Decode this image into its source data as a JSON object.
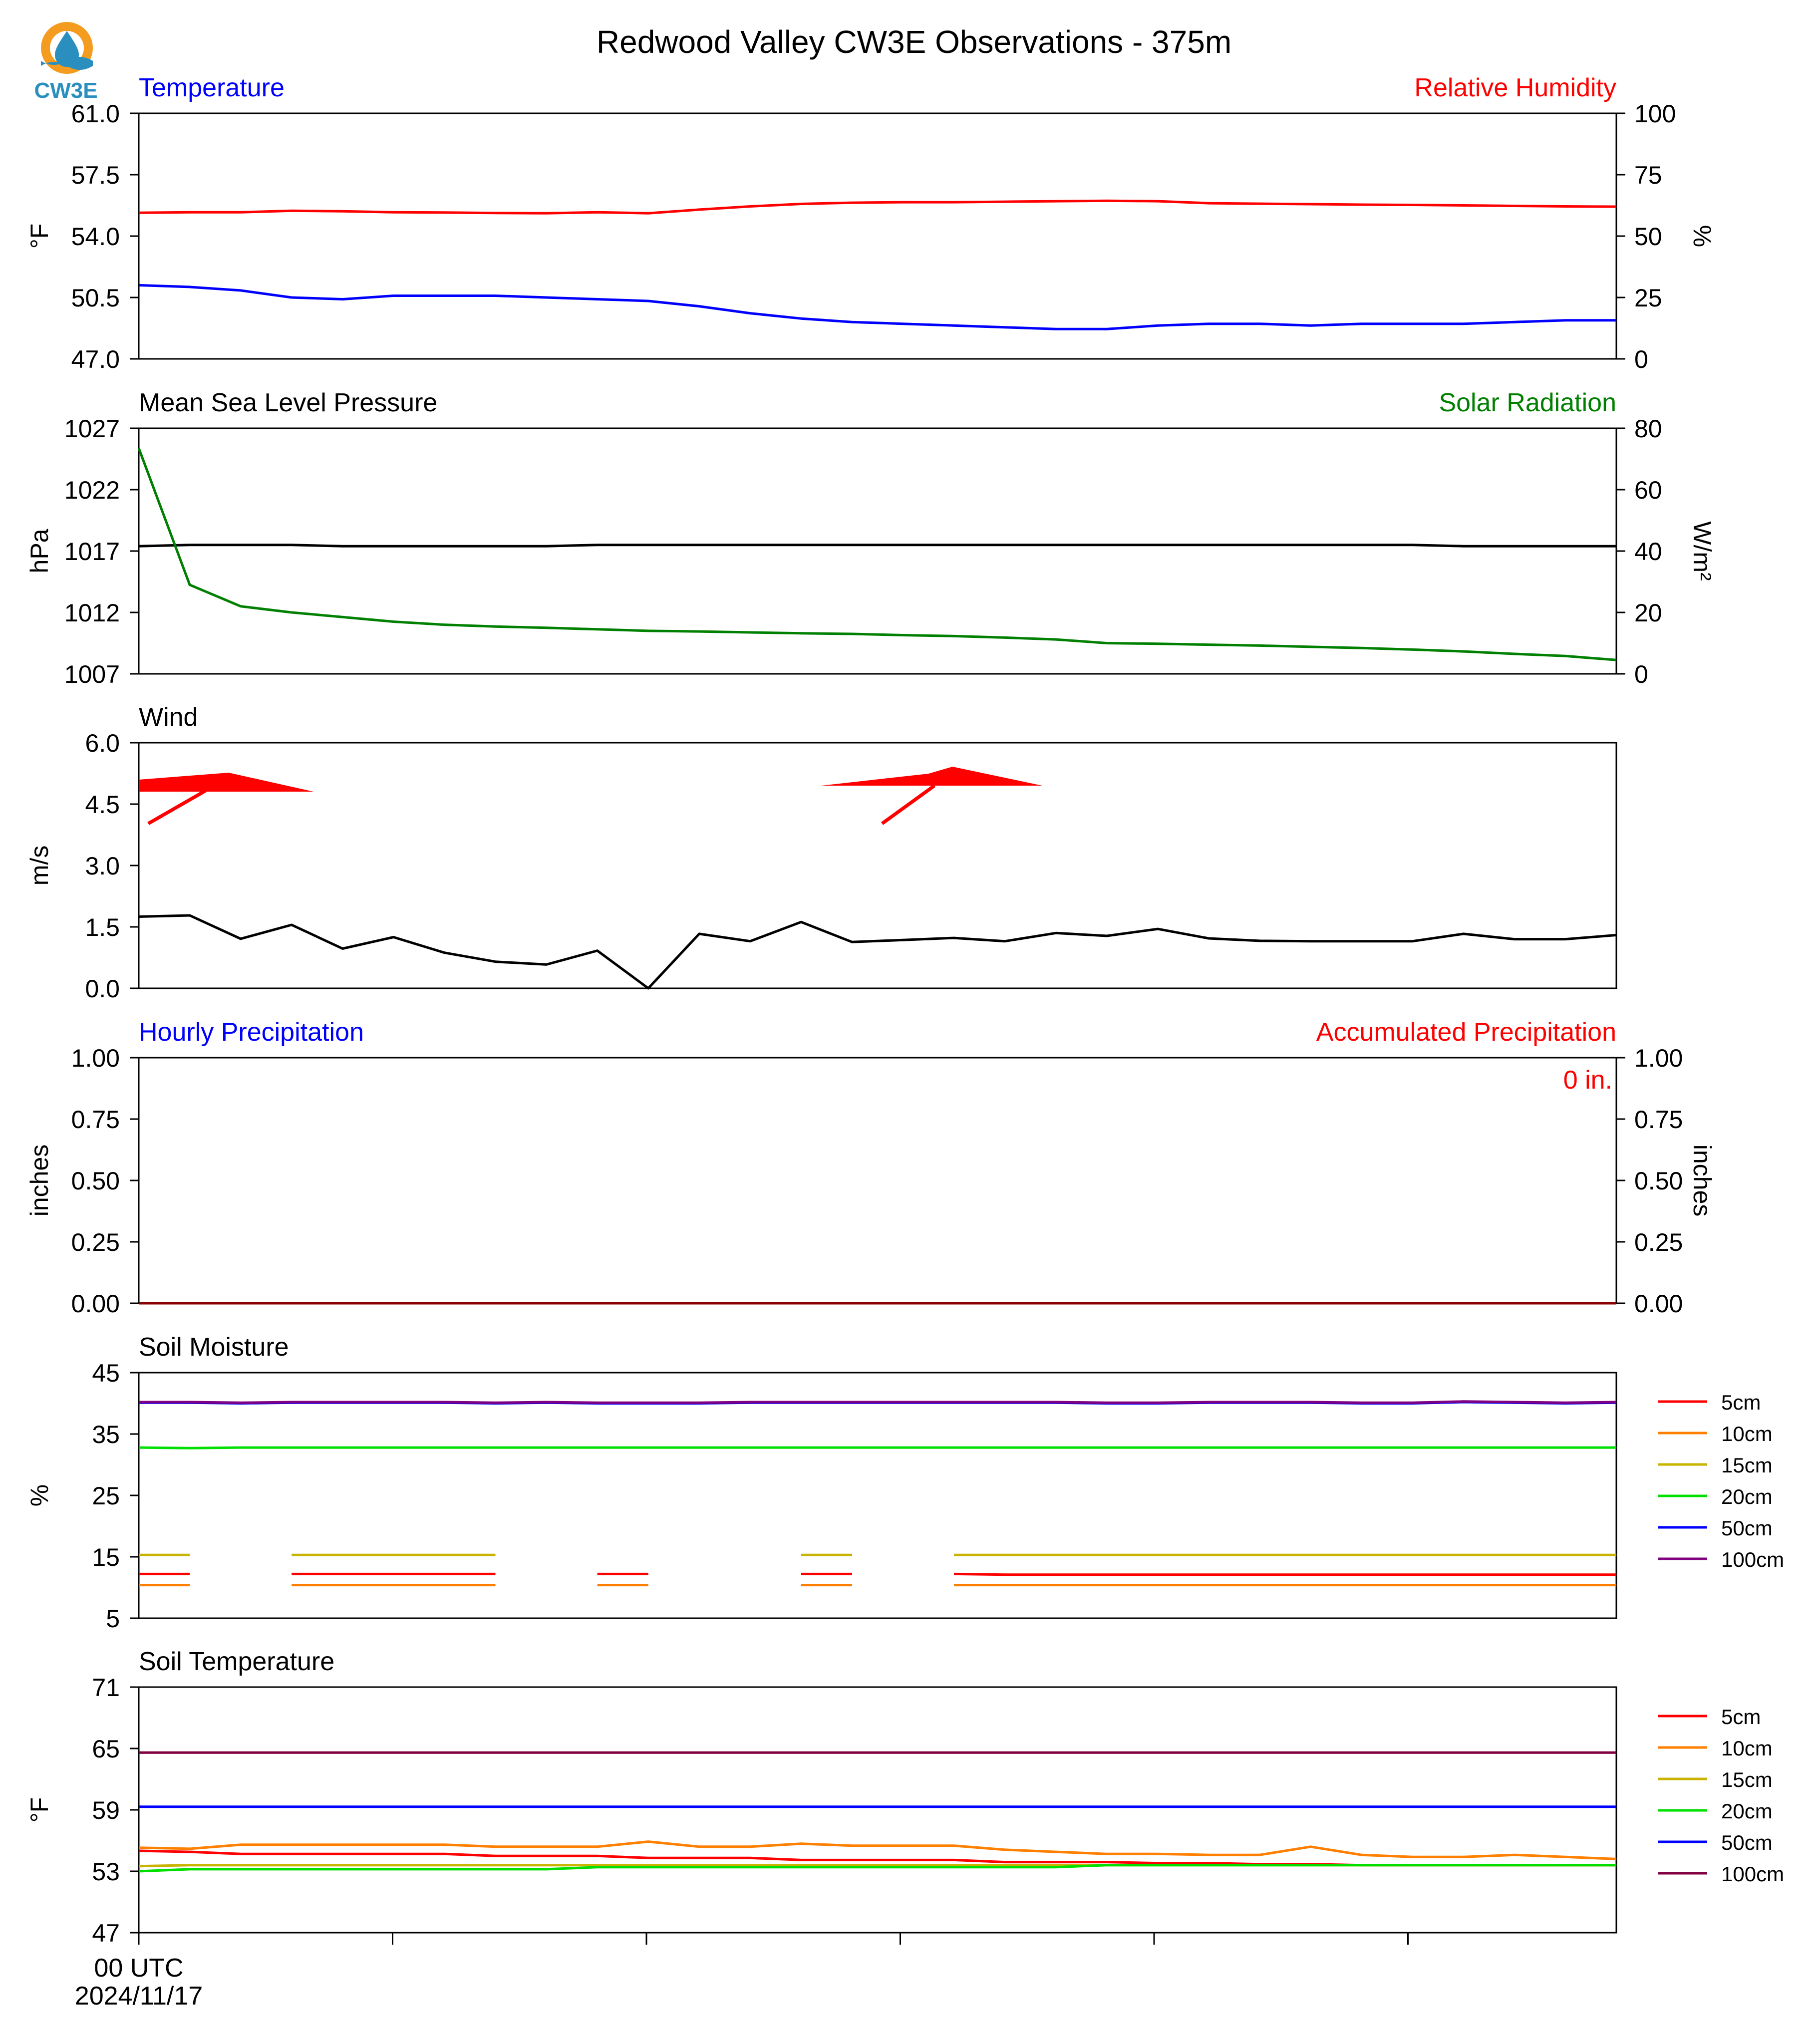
{
  "title": "Redwood Valley CW3E Observations - 375m",
  "logo": {
    "text": "CW3E",
    "colors": {
      "ring": "#f39c1f",
      "drop": "#2a8fbf",
      "text": "#2a8fbf"
    }
  },
  "x_axis": {
    "first_label_line1": "00 UTC",
    "first_label_line2": "2024/11/17",
    "n_points": 30,
    "n_ticks": 6
  },
  "chart_data": [
    {
      "type": "line",
      "title_left": "Temperature",
      "title_left_color": "#0000ff",
      "title_right": "Relative Humidity",
      "title_right_color": "#ff0000",
      "ylabel": "°F",
      "ylabel_right": "%",
      "ylim": [
        47.0,
        61.0
      ],
      "yticks": [
        "47.0",
        "50.5",
        "54.0",
        "57.5",
        "61.0"
      ],
      "ylim_right": [
        0,
        100
      ],
      "yticks_right": [
        "0",
        "25",
        "50",
        "75",
        "100"
      ],
      "series": [
        {
          "axis": "left",
          "color": "#0000ff",
          "values": [
            51.2,
            51.1,
            50.9,
            50.5,
            50.4,
            50.6,
            50.6,
            50.6,
            50.5,
            50.4,
            50.3,
            50.0,
            49.6,
            49.3,
            49.1,
            49.0,
            48.9,
            48.8,
            48.7,
            48.7,
            48.9,
            49.0,
            49.0,
            48.9,
            49.0,
            49.0,
            49.0,
            49.1,
            49.2,
            49.2
          ]
        },
        {
          "axis": "right",
          "color": "#ff0000",
          "values": [
            59.5,
            59.7,
            59.7,
            60.3,
            60.1,
            59.7,
            59.6,
            59.4,
            59.3,
            59.7,
            59.3,
            60.8,
            62.1,
            63.1,
            63.6,
            63.8,
            63.8,
            64.0,
            64.2,
            64.4,
            64.2,
            63.4,
            63.2,
            63.0,
            62.8,
            62.7,
            62.5,
            62.3,
            62.1,
            62.0
          ]
        }
      ]
    },
    {
      "type": "line",
      "title_left": "Mean Sea Level Pressure",
      "title_left_color": "#000000",
      "title_right": "Solar Radiation",
      "title_right_color": "#008000",
      "ylabel": "hPa",
      "ylabel_right": "W/m²",
      "ylim": [
        1007,
        1027
      ],
      "yticks": [
        "1007",
        "1012",
        "1017",
        "1022",
        "1027"
      ],
      "ylim_right": [
        0,
        80
      ],
      "yticks_right": [
        "0",
        "20",
        "40",
        "60",
        "80"
      ],
      "series": [
        {
          "axis": "left",
          "color": "#000000",
          "values": [
            1017.4,
            1017.5,
            1017.5,
            1017.5,
            1017.4,
            1017.4,
            1017.4,
            1017.4,
            1017.4,
            1017.5,
            1017.5,
            1017.5,
            1017.5,
            1017.5,
            1017.5,
            1017.5,
            1017.5,
            1017.5,
            1017.5,
            1017.5,
            1017.5,
            1017.5,
            1017.5,
            1017.5,
            1017.5,
            1017.5,
            1017.4,
            1017.4,
            1017.4,
            1017.4
          ]
        },
        {
          "axis": "right",
          "color": "#008000",
          "values": [
            73.5,
            29.0,
            22.0,
            20.0,
            18.5,
            17.0,
            16.0,
            15.4,
            15.0,
            14.5,
            14.0,
            13.8,
            13.5,
            13.2,
            13.0,
            12.6,
            12.3,
            11.8,
            11.2,
            10.0,
            9.8,
            9.5,
            9.2,
            8.8,
            8.4,
            7.9,
            7.3,
            6.5,
            5.8,
            4.5
          ]
        }
      ]
    },
    {
      "type": "line",
      "title_left": "Wind",
      "title_left_color": "#000000",
      "ylabel": "m/s",
      "ylim": [
        0.0,
        6.0
      ],
      "yticks": [
        "0.0",
        "1.5",
        "3.0",
        "4.5",
        "6.0"
      ],
      "series": [
        {
          "axis": "left",
          "color": "#000000",
          "values": [
            1.75,
            1.78,
            1.21,
            1.55,
            0.97,
            1.25,
            0.87,
            0.65,
            0.58,
            0.92,
            0.0,
            1.33,
            1.15,
            1.62,
            1.13,
            1.18,
            1.23,
            1.15,
            1.35,
            1.28,
            1.45,
            1.22,
            1.16,
            1.15,
            1.15,
            1.15,
            1.33,
            1.2,
            1.2,
            1.3
          ]
        }
      ],
      "barbs": {
        "color": "#ff0000",
        "positions": [
          1,
          16
        ]
      }
    },
    {
      "type": "line",
      "title_left": "Hourly Precipitation",
      "title_left_color": "#0000ff",
      "title_right": "Accumulated Precipitation",
      "title_right_color": "#ff0000",
      "ylabel": "inches",
      "ylabel_right": "inches",
      "ylim": [
        0.0,
        1.0
      ],
      "yticks": [
        "0.00",
        "0.25",
        "0.50",
        "0.75",
        "1.00"
      ],
      "ylim_right": [
        0.0,
        1.0
      ],
      "yticks_right": [
        "0.00",
        "0.25",
        "0.50",
        "0.75",
        "1.00"
      ],
      "annotation": {
        "text": "0 in.",
        "color": "#ff0000"
      },
      "series": [
        {
          "axis": "left",
          "color": "#0000ff",
          "values": [
            0,
            0,
            0,
            0,
            0,
            0,
            0,
            0,
            0,
            0,
            0,
            0,
            0,
            0,
            0,
            0,
            0,
            0,
            0,
            0,
            0,
            0,
            0,
            0,
            0,
            0,
            0,
            0,
            0,
            0
          ]
        },
        {
          "axis": "right",
          "color": "#8b0000",
          "values": [
            0,
            0,
            0,
            0,
            0,
            0,
            0,
            0,
            0,
            0,
            0,
            0,
            0,
            0,
            0,
            0,
            0,
            0,
            0,
            0,
            0,
            0,
            0,
            0,
            0,
            0,
            0,
            0,
            0,
            0
          ]
        }
      ]
    },
    {
      "type": "line",
      "title_left": "Soil Moisture",
      "title_left_color": "#000000",
      "ylabel": "%",
      "ylim": [
        5,
        45
      ],
      "yticks": [
        "5",
        "15",
        "25",
        "35",
        "45"
      ],
      "legend": {
        "placement": "right",
        "entries": [
          "5cm",
          "10cm",
          "15cm",
          "20cm",
          "50cm",
          "100cm"
        ]
      },
      "series": [
        {
          "name": "5cm",
          "color": "#ff0000",
          "values": [
            12.2,
            12.2,
            null,
            12.2,
            12.2,
            12.2,
            12.2,
            12.2,
            null,
            12.2,
            12.2,
            null,
            null,
            12.2,
            12.2,
            null,
            12.2,
            12.1,
            12.1,
            12.1,
            12.1,
            12.1,
            12.1,
            12.1,
            12.1,
            12.1,
            12.1,
            12.1,
            12.1,
            12.1
          ]
        },
        {
          "name": "10cm",
          "color": "#ff8000",
          "values": [
            10.4,
            10.4,
            null,
            10.4,
            10.4,
            10.4,
            10.4,
            10.4,
            null,
            10.4,
            10.4,
            null,
            null,
            10.4,
            10.4,
            null,
            10.4,
            10.4,
            10.4,
            10.4,
            10.4,
            10.4,
            10.4,
            10.4,
            10.4,
            10.4,
            10.4,
            10.4,
            10.4,
            10.4
          ]
        },
        {
          "name": "15cm",
          "color": "#c8b400",
          "values": [
            15.3,
            15.3,
            null,
            15.3,
            15.3,
            15.3,
            15.3,
            15.3,
            null,
            null,
            null,
            null,
            null,
            15.3,
            15.3,
            null,
            15.3,
            15.3,
            15.3,
            15.3,
            15.3,
            15.3,
            15.3,
            15.3,
            15.3,
            15.3,
            15.3,
            15.3,
            15.3,
            15.3
          ]
        },
        {
          "name": "20cm",
          "color": "#00e000",
          "values": [
            32.8,
            32.7,
            32.8,
            32.8,
            32.8,
            32.8,
            32.8,
            32.8,
            32.8,
            32.8,
            32.8,
            32.8,
            32.8,
            32.8,
            32.8,
            32.8,
            32.8,
            32.8,
            32.8,
            32.8,
            32.8,
            32.8,
            32.8,
            32.8,
            32.8,
            32.8,
            32.8,
            32.8,
            32.8,
            32.8
          ]
        },
        {
          "name": "50cm",
          "color": "#0000ff",
          "values": [
            40.1,
            40.1,
            40.0,
            40.1,
            40.1,
            40.1,
            40.1,
            40.0,
            40.1,
            40.0,
            40.0,
            40.0,
            40.1,
            40.1,
            40.1,
            40.1,
            40.1,
            40.1,
            40.1,
            40.0,
            40.0,
            40.1,
            40.1,
            40.1,
            40.0,
            40.0,
            40.2,
            40.1,
            40.0,
            40.1
          ]
        },
        {
          "name": "100cm",
          "color": "#800080",
          "values": [
            40.2,
            40.2,
            40.1,
            40.2,
            40.2,
            40.2,
            40.2,
            40.1,
            40.2,
            40.1,
            40.1,
            40.1,
            40.2,
            40.2,
            40.2,
            40.2,
            40.2,
            40.2,
            40.2,
            40.1,
            40.1,
            40.2,
            40.2,
            40.2,
            40.1,
            40.1,
            40.3,
            40.2,
            40.1,
            40.2
          ]
        }
      ]
    },
    {
      "type": "line",
      "title_left": "Soil Temperature",
      "title_left_color": "#000000",
      "ylabel": "°F",
      "ylim": [
        47,
        71
      ],
      "yticks": [
        "47",
        "53",
        "59",
        "65",
        "71"
      ],
      "legend": {
        "placement": "right",
        "entries": [
          "5cm",
          "10cm",
          "15cm",
          "20cm",
          "50cm",
          "100cm"
        ]
      },
      "series": [
        {
          "name": "5cm",
          "color": "#ff0000",
          "values": [
            55.0,
            54.9,
            54.7,
            54.7,
            54.7,
            54.7,
            54.7,
            54.5,
            54.5,
            54.5,
            54.3,
            54.3,
            54.3,
            54.1,
            54.1,
            54.1,
            54.1,
            53.9,
            53.9,
            53.9,
            53.8,
            53.8,
            53.7,
            53.7,
            53.6,
            53.6,
            53.6,
            53.6,
            53.6,
            53.6
          ]
        },
        {
          "name": "10cm",
          "color": "#ff8000",
          "values": [
            55.3,
            55.2,
            55.6,
            55.6,
            55.6,
            55.6,
            55.6,
            55.4,
            55.4,
            55.4,
            55.9,
            55.4,
            55.4,
            55.7,
            55.5,
            55.5,
            55.5,
            55.1,
            54.9,
            54.7,
            54.7,
            54.6,
            54.6,
            55.4,
            54.6,
            54.4,
            54.4,
            54.6,
            54.4,
            54.2
          ]
        },
        {
          "name": "15cm",
          "color": "#c8b400",
          "values": [
            53.5,
            53.6,
            53.6,
            53.6,
            53.6,
            53.6,
            53.6,
            53.6,
            53.6,
            53.6,
            53.6,
            53.6,
            53.6,
            53.6,
            53.6,
            53.6,
            53.6,
            53.6,
            53.6,
            53.6,
            53.6,
            53.6,
            53.6,
            53.6,
            53.6,
            53.6,
            53.6,
            53.6,
            53.6,
            53.6
          ]
        },
        {
          "name": "20cm",
          "color": "#00e000",
          "values": [
            53.0,
            53.2,
            53.2,
            53.2,
            53.2,
            53.2,
            53.2,
            53.2,
            53.2,
            53.4,
            53.4,
            53.4,
            53.4,
            53.4,
            53.4,
            53.4,
            53.4,
            53.4,
            53.4,
            53.6,
            53.6,
            53.6,
            53.6,
            53.6,
            53.6,
            53.6,
            53.6,
            53.6,
            53.6,
            53.6
          ]
        },
        {
          "name": "50cm",
          "color": "#0000ff",
          "values": [
            59.3,
            59.3,
            59.3,
            59.3,
            59.3,
            59.3,
            59.3,
            59.3,
            59.3,
            59.3,
            59.3,
            59.3,
            59.3,
            59.3,
            59.3,
            59.3,
            59.3,
            59.3,
            59.3,
            59.3,
            59.3,
            59.3,
            59.3,
            59.3,
            59.3,
            59.3,
            59.3,
            59.3,
            59.3,
            59.3
          ]
        },
        {
          "name": "100cm",
          "color": "#800040",
          "values": [
            64.6,
            64.6,
            64.6,
            64.6,
            64.6,
            64.6,
            64.6,
            64.6,
            64.6,
            64.6,
            64.6,
            64.6,
            64.6,
            64.6,
            64.6,
            64.6,
            64.6,
            64.6,
            64.6,
            64.6,
            64.6,
            64.6,
            64.6,
            64.6,
            64.6,
            64.6,
            64.6,
            64.6,
            64.6,
            64.6
          ]
        }
      ]
    }
  ]
}
